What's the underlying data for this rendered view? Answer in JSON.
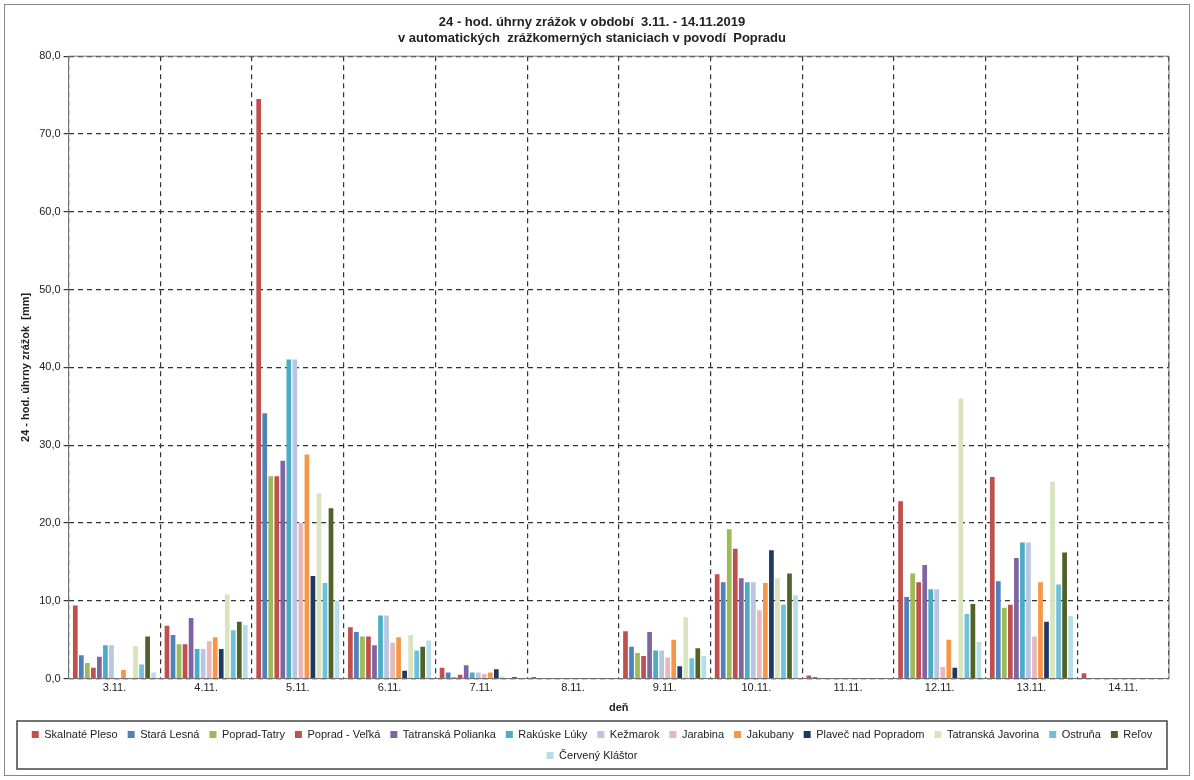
{
  "chart_data": {
    "type": "bar",
    "title": "24 - hod. úhrny zrážok v období  3.11. - 14.11.2019",
    "subtitle": "v automatických  zrážkomerných staniciach v povodí  Popradu",
    "xlabel": "deň",
    "ylabel": "24 - hod. úhrny zrážok  [mm]",
    "categories": [
      "3.11.",
      "4.11.",
      "5.11.",
      "6.11.",
      "7.11.",
      "8.11.",
      "9.11.",
      "10.11.",
      "11.11.",
      "12.11.",
      "13.11.",
      "14.11."
    ],
    "series": [
      {
        "name": "Skalnaté Pleso",
        "color": "#c0504d",
        "values": [
          9.4,
          6.8,
          74.5,
          6.6,
          1.4,
          0.2,
          6.1,
          13.4,
          0.4,
          22.8,
          25.9,
          0.7
        ]
      },
      {
        "name": "Stará Lesná",
        "color": "#4f81bd",
        "values": [
          3.0,
          5.6,
          34.1,
          6.0,
          0.8,
          0,
          4.1,
          12.4,
          0.2,
          10.5,
          12.5,
          0
        ]
      },
      {
        "name": "Poprad-Tatry",
        "color": "#9bbb59",
        "values": [
          2.0,
          4.4,
          26.0,
          5.4,
          0.2,
          0,
          3.3,
          19.2,
          0,
          13.5,
          9.1,
          0
        ]
      },
      {
        "name": "Poprad - Veľká",
        "color": "#c0504d",
        "values": [
          1.4,
          4.4,
          26.0,
          5.4,
          0.5,
          0,
          2.9,
          16.7,
          0,
          12.4,
          9.5,
          0
        ]
      },
      {
        "name": "Tatranská Polianka",
        "color": "#8064a2",
        "values": [
          2.8,
          7.8,
          28.0,
          4.3,
          1.7,
          0,
          6.0,
          12.9,
          0,
          14.6,
          15.5,
          0
        ]
      },
      {
        "name": "Rakúske Lúky",
        "color": "#4bacc6",
        "values": [
          4.3,
          3.8,
          41.0,
          8.1,
          0.8,
          0,
          3.6,
          12.4,
          0,
          11.5,
          17.5,
          0
        ]
      },
      {
        "name": "Kežmarok",
        "color": "#b8c6e2",
        "values": [
          4.3,
          3.8,
          41.0,
          8.1,
          0.8,
          0,
          3.6,
          12.4,
          0,
          11.5,
          17.5,
          0
        ]
      },
      {
        "name": "Jarabina",
        "color": "#e6b9b8",
        "values": [
          null,
          4.8,
          20.0,
          4.6,
          0.6,
          0,
          2.7,
          8.8,
          0,
          1.5,
          5.4,
          0
        ]
      },
      {
        "name": "Jakubany",
        "color": "#f79646",
        "values": [
          1.1,
          5.3,
          28.8,
          5.3,
          0.8,
          0,
          5.0,
          12.3,
          0,
          5.0,
          12.4,
          0
        ]
      },
      {
        "name": "Plaveč nad Popradom",
        "color": "#1f3864",
        "values": [
          0,
          3.8,
          13.2,
          1.0,
          1.2,
          0,
          1.6,
          16.5,
          0,
          1.4,
          7.3,
          0
        ]
      },
      {
        "name": "Tatranská Javorina",
        "color": "#d7e4bd",
        "values": [
          4.2,
          10.8,
          23.8,
          5.6,
          0.3,
          0,
          7.9,
          12.9,
          0,
          36.0,
          25.3,
          0
        ]
      },
      {
        "name": "Ostruňa",
        "color": "#6fc0da",
        "values": [
          1.8,
          6.2,
          12.3,
          3.6,
          null,
          0,
          2.6,
          9.5,
          0,
          8.3,
          12.1,
          0
        ]
      },
      {
        "name": "Reľov",
        "color": "#4f6228",
        "values": [
          5.4,
          7.3,
          21.9,
          4.1,
          0.2,
          0,
          3.9,
          13.5,
          0,
          9.6,
          16.2,
          0
        ]
      },
      {
        "name": "Červený Kláštor",
        "color": "#b7dee8",
        "values": [
          0.8,
          6.9,
          10.0,
          4.9,
          null,
          0,
          2.9,
          10.7,
          0,
          4.7,
          8.0,
          0
        ]
      }
    ],
    "ylim": [
      0,
      80
    ],
    "yticks": [
      {
        "value": 0,
        "label": "0,0"
      },
      {
        "value": 10,
        "label": "10,0"
      },
      {
        "value": 20,
        "label": "20,0"
      },
      {
        "value": 30,
        "label": "30,0"
      },
      {
        "value": 40,
        "label": "40,0"
      },
      {
        "value": 50,
        "label": "50,0"
      },
      {
        "value": 60,
        "label": "60,0"
      },
      {
        "value": 70,
        "label": "70,0"
      },
      {
        "value": 80,
        "label": "80,0"
      }
    ],
    "grid": true,
    "legend": "bottom"
  }
}
